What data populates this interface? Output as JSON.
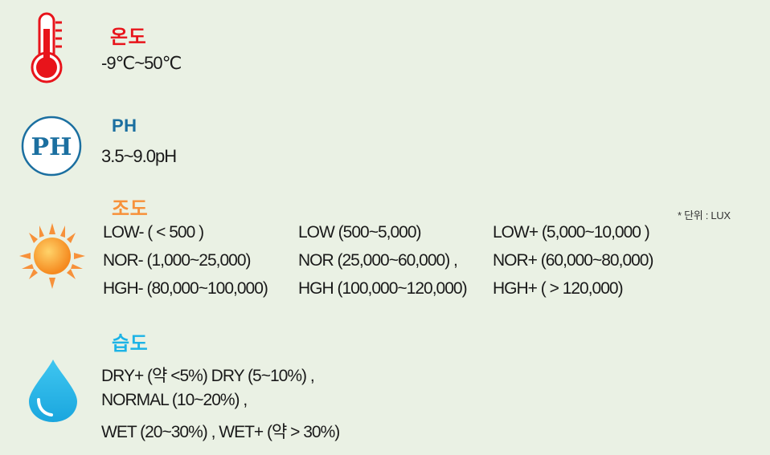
{
  "temperature": {
    "icon": "thermometer-icon",
    "title": "온도",
    "range": "-9℃~50℃",
    "color": "#e8141b"
  },
  "ph": {
    "icon": "ph-badge-icon",
    "badge_text": "PH",
    "title": "PH",
    "range": "3.5~9.0pH",
    "color": "#1b6fa0"
  },
  "illuminance": {
    "icon": "sun-icon",
    "title": "조도",
    "unit_note": "* 단위 : LUX",
    "color": "#f7913a",
    "rows": [
      [
        "LOW- ( < 500 )",
        "LOW (500~5,000)",
        "LOW+  (5,000~10,000 )"
      ],
      [
        "NOR- (1,000~25,000)",
        "NOR (25,000~60,000) ,",
        "NOR+ (60,000~80,000)"
      ],
      [
        "HGH- (80,000~100,000)",
        "HGH (100,000~120,000)",
        "HGH+ ( > 120,000)"
      ]
    ]
  },
  "humidity": {
    "icon": "water-drop-icon",
    "title": "습도",
    "color": "#1cb3e6",
    "lines": [
      "DRY+ (약 <5%)  DRY (5~10%) ,",
      "NORMAL (10~20%) ,",
      "WET (20~30%) , WET+ (약 > 30%)"
    ]
  }
}
